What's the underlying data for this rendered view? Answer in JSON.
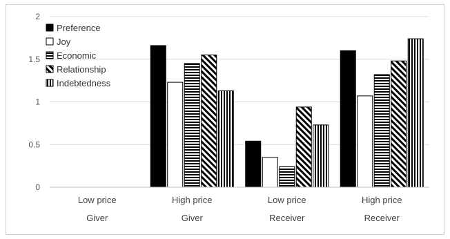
{
  "chart_data": {
    "type": "bar",
    "title": "",
    "xlabel": "",
    "ylabel": "",
    "ylim": [
      0,
      2
    ],
    "yticks": [
      0,
      0.5,
      1,
      1.5,
      2
    ],
    "ytick_labels": [
      "0",
      "0.5",
      "1",
      "1.5",
      "2"
    ],
    "grid": true,
    "legend_position": "top-left",
    "categories": [
      {
        "line1": "Low price",
        "line2": "Giver"
      },
      {
        "line1": "High price",
        "line2": "Giver"
      },
      {
        "line1": "Low price",
        "line2": "Receiver"
      },
      {
        "line1": "High price",
        "line2": "Receiver"
      }
    ],
    "series": [
      {
        "name": "Preference",
        "pattern": "solid",
        "values": [
          0,
          1.66,
          0.54,
          1.6
        ]
      },
      {
        "name": "Joy",
        "pattern": "hollow",
        "values": [
          0,
          1.23,
          0.35,
          1.07
        ]
      },
      {
        "name": "Economic",
        "pattern": "horizontal-lines",
        "values": [
          0,
          1.45,
          0.24,
          1.32
        ]
      },
      {
        "name": "Relationship",
        "pattern": "diagonal-lines",
        "values": [
          0,
          1.55,
          0.94,
          1.48
        ]
      },
      {
        "name": "Indebtedness",
        "pattern": "vertical-lines",
        "values": [
          0,
          1.13,
          0.73,
          1.74
        ]
      }
    ],
    "colors": {
      "ink": "#000000",
      "grid": "#d9d9d9",
      "axis": "#bfbfbf"
    }
  }
}
